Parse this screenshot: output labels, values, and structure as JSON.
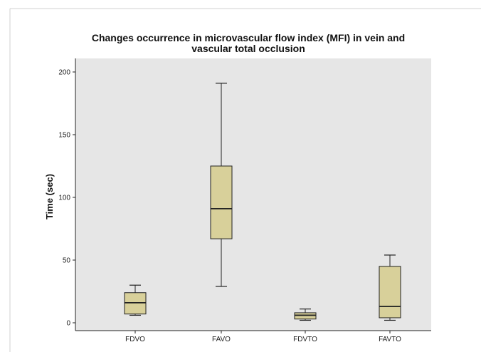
{
  "chart_data": {
    "type": "box",
    "title": "Changes occurrence in microvascular flow index (MFI) in vein and vascular total occlusion",
    "title_lines": [
      "Changes occurrence in microvascular flow index (MFI) in vein and",
      "vascular total occlusion"
    ],
    "xlabel": "",
    "ylabel": "Time (sec)",
    "ylim": [
      0,
      200
    ],
    "yticks": [
      0,
      50,
      100,
      150,
      200
    ],
    "categories": [
      "FDVO",
      "FAVO",
      "FDVTO",
      "FAVTO"
    ],
    "boxes": [
      {
        "category": "FDVO",
        "min": 6,
        "q1": 7,
        "median": 16,
        "q3": 24,
        "max": 30
      },
      {
        "category": "FAVO",
        "min": 29,
        "q1": 67,
        "median": 91,
        "q3": 125,
        "max": 191
      },
      {
        "category": "FDVTO",
        "min": 2,
        "q1": 3,
        "median": 6,
        "q3": 8,
        "max": 11
      },
      {
        "category": "FAVTO",
        "min": 2,
        "q1": 4,
        "median": 13,
        "q3": 45,
        "max": 54
      }
    ],
    "grid": false,
    "legend": "none",
    "colors": {
      "plot_background": "#e6e6e6",
      "box_fill": "#d8d09a",
      "stroke": "#222222",
      "frame_border": "#cfcfcf"
    }
  }
}
